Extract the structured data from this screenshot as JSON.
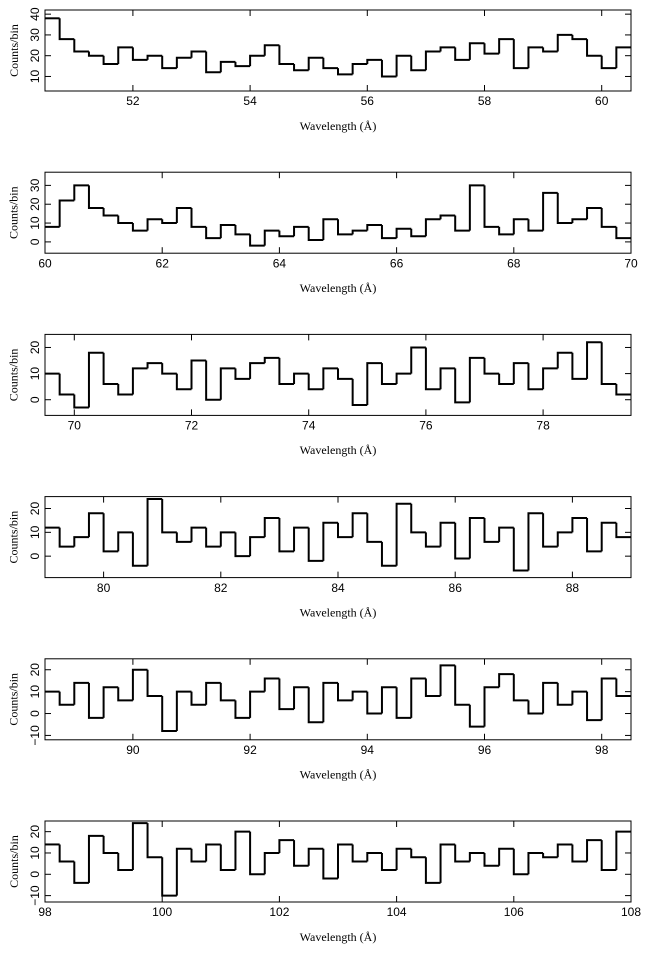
{
  "chart_data": [
    {
      "type": "histogram",
      "xlabel": "Wavelength (Å)",
      "ylabel": "Counts/bin",
      "color": "#000000",
      "bins": [
        50.5,
        50.75,
        51,
        51.25,
        51.5,
        51.75,
        52,
        52.25,
        52.5,
        52.75,
        53,
        53.25,
        53.5,
        53.75,
        54,
        54.25,
        54.5,
        54.75,
        55,
        55.25,
        55.5,
        55.75,
        56,
        56.25,
        56.5,
        56.75,
        57,
        57.25,
        57.5,
        57.75,
        58,
        58.25,
        58.5,
        58.75,
        59,
        59.25,
        59.5,
        59.75,
        60,
        60.25,
        60.5
      ],
      "values": [
        38,
        28,
        22,
        20,
        16,
        24,
        18,
        20,
        14,
        19,
        22,
        12,
        17,
        15,
        20,
        25,
        16,
        13,
        19,
        14,
        11,
        16,
        18,
        10,
        20,
        13,
        22,
        24,
        18,
        26,
        21,
        28,
        14,
        24,
        22,
        30,
        28,
        20,
        14,
        24
      ],
      "xlim": [
        50.5,
        60.5
      ],
      "xticks": [
        52,
        54,
        56,
        58,
        60
      ],
      "ylim": [
        3,
        42
      ],
      "yticks": [
        10,
        20,
        30,
        40
      ]
    },
    {
      "type": "histogram",
      "xlabel": "Wavelength (Å)",
      "ylabel": "Counts/bin",
      "color": "#000000",
      "bins": [
        60,
        60.25,
        60.5,
        60.75,
        61,
        61.25,
        61.5,
        61.75,
        62,
        62.25,
        62.5,
        62.75,
        63,
        63.25,
        63.5,
        63.75,
        64,
        64.25,
        64.5,
        64.75,
        65,
        65.25,
        65.5,
        65.75,
        66,
        66.25,
        66.5,
        66.75,
        67,
        67.25,
        67.5,
        67.75,
        68,
        68.25,
        68.5,
        68.75,
        69,
        69.25,
        69.5,
        69.75,
        70
      ],
      "values": [
        8,
        22,
        30,
        18,
        14,
        10,
        6,
        12,
        10,
        18,
        8,
        2,
        9,
        4,
        -2,
        6,
        3,
        8,
        1,
        12,
        4,
        6,
        9,
        2,
        7,
        3,
        12,
        14,
        6,
        30,
        8,
        4,
        12,
        6,
        26,
        10,
        12,
        18,
        8,
        2
      ],
      "xlim": [
        60,
        70
      ],
      "xticks": [
        60,
        62,
        64,
        66,
        68,
        70
      ],
      "ylim": [
        -6,
        37
      ],
      "yticks": [
        0,
        10,
        20,
        30
      ]
    },
    {
      "type": "histogram",
      "xlabel": "Wavelength (Å)",
      "ylabel": "Counts/bin",
      "color": "#000000",
      "bins": [
        69.5,
        69.75,
        70,
        70.25,
        70.5,
        70.75,
        71,
        71.25,
        71.5,
        71.75,
        72,
        72.25,
        72.5,
        72.75,
        73,
        73.25,
        73.5,
        73.75,
        74,
        74.25,
        74.5,
        74.75,
        75,
        75.25,
        75.5,
        75.75,
        76,
        76.25,
        76.5,
        76.75,
        77,
        77.25,
        77.5,
        77.75,
        78,
        78.25,
        78.5,
        78.75,
        79,
        79.25,
        79.5
      ],
      "values": [
        10,
        2,
        -3,
        18,
        6,
        2,
        12,
        14,
        10,
        4,
        15,
        0,
        12,
        8,
        14,
        16,
        6,
        10,
        4,
        12,
        8,
        -2,
        14,
        6,
        10,
        20,
        4,
        12,
        -1,
        16,
        10,
        6,
        14,
        4,
        12,
        18,
        8,
        22,
        6,
        2
      ],
      "xlim": [
        69.5,
        79.5
      ],
      "xticks": [
        70,
        72,
        74,
        76,
        78
      ],
      "ylim": [
        -6,
        25
      ],
      "yticks": [
        0,
        10,
        20
      ]
    },
    {
      "type": "histogram",
      "xlabel": "Wavelength (Å)",
      "ylabel": "Counts/bin",
      "color": "#000000",
      "bins": [
        79,
        79.25,
        79.5,
        79.75,
        80,
        80.25,
        80.5,
        80.75,
        81,
        81.25,
        81.5,
        81.75,
        82,
        82.25,
        82.5,
        82.75,
        83,
        83.25,
        83.5,
        83.75,
        84,
        84.25,
        84.5,
        84.75,
        85,
        85.25,
        85.5,
        85.75,
        86,
        86.25,
        86.5,
        86.75,
        87,
        87.25,
        87.5,
        87.75,
        88,
        88.25,
        88.5,
        88.75,
        89
      ],
      "values": [
        12,
        4,
        8,
        18,
        2,
        10,
        -4,
        24,
        10,
        6,
        12,
        4,
        10,
        0,
        8,
        16,
        2,
        12,
        -2,
        14,
        8,
        18,
        6,
        -4,
        22,
        10,
        4,
        14,
        -1,
        16,
        6,
        12,
        -6,
        18,
        4,
        10,
        16,
        2,
        14,
        8
      ],
      "xlim": [
        79,
        89
      ],
      "xticks": [
        80,
        82,
        84,
        86,
        88
      ],
      "ylim": [
        -9,
        25
      ],
      "yticks": [
        0,
        10,
        20
      ]
    },
    {
      "type": "histogram",
      "xlabel": "Wavelength (Å)",
      "ylabel": "Counts/bin",
      "color": "#000000",
      "bins": [
        88.5,
        88.75,
        89,
        89.25,
        89.5,
        89.75,
        90,
        90.25,
        90.5,
        90.75,
        91,
        91.25,
        91.5,
        91.75,
        92,
        92.25,
        92.5,
        92.75,
        93,
        93.25,
        93.5,
        93.75,
        94,
        94.25,
        94.5,
        94.75,
        95,
        95.25,
        95.5,
        95.75,
        96,
        96.25,
        96.5,
        96.75,
        97,
        97.25,
        97.5,
        97.75,
        98,
        98.25,
        98.5
      ],
      "values": [
        10,
        4,
        14,
        -2,
        12,
        6,
        20,
        8,
        -8,
        10,
        4,
        14,
        6,
        -2,
        10,
        16,
        2,
        12,
        -4,
        14,
        6,
        10,
        0,
        12,
        -2,
        16,
        8,
        22,
        4,
        -6,
        12,
        18,
        6,
        0,
        14,
        4,
        10,
        -3,
        16,
        8
      ],
      "xlim": [
        88.5,
        98.5
      ],
      "xticks": [
        90,
        92,
        94,
        96,
        98
      ],
      "ylim": [
        -12,
        25
      ],
      "yticks": [
        {
          "value": -10,
          "label": "−10"
        },
        0,
        10,
        20
      ]
    },
    {
      "type": "histogram",
      "xlabel": "Wavelength (Å)",
      "ylabel": "Counts/bin",
      "color": "#000000",
      "bins": [
        98,
        98.25,
        98.5,
        98.75,
        99,
        99.25,
        99.5,
        99.75,
        100,
        100.25,
        100.5,
        100.75,
        101,
        101.25,
        101.5,
        101.75,
        102,
        102.25,
        102.5,
        102.75,
        103,
        103.25,
        103.5,
        103.75,
        104,
        104.25,
        104.5,
        104.75,
        105,
        105.25,
        105.5,
        105.75,
        106,
        106.25,
        106.5,
        106.75,
        107,
        107.25,
        107.5,
        107.75,
        108
      ],
      "values": [
        14,
        6,
        -4,
        18,
        10,
        2,
        24,
        8,
        -10,
        12,
        6,
        14,
        2,
        20,
        0,
        10,
        16,
        4,
        12,
        -2,
        14,
        6,
        10,
        2,
        12,
        8,
        -4,
        14,
        6,
        10,
        4,
        12,
        0,
        10,
        8,
        14,
        6,
        16,
        2,
        20
      ],
      "xlim": [
        98,
        108
      ],
      "xticks": [
        98,
        100,
        102,
        104,
        106,
        108
      ],
      "ylim": [
        -13,
        25
      ],
      "yticks": [
        {
          "value": -10,
          "label": "−10"
        },
        0,
        10,
        20
      ]
    }
  ]
}
